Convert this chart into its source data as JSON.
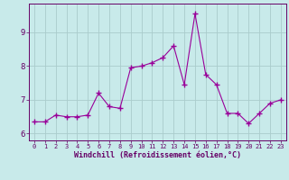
{
  "x": [
    0,
    1,
    2,
    3,
    4,
    5,
    6,
    7,
    8,
    9,
    10,
    11,
    12,
    13,
    14,
    15,
    16,
    17,
    18,
    19,
    20,
    21,
    22,
    23
  ],
  "y": [
    6.35,
    6.35,
    6.55,
    6.5,
    6.5,
    6.55,
    7.2,
    6.8,
    6.75,
    7.95,
    8.0,
    8.1,
    8.25,
    8.6,
    7.45,
    9.55,
    7.75,
    7.45,
    6.6,
    6.6,
    6.3,
    6.6,
    6.9,
    7.0
  ],
  "line_color": "#990099",
  "marker": "+",
  "bg_color": "#c8eaea",
  "grid_color": "#aacccc",
  "axis_color": "#660066",
  "xlabel": "Windchill (Refroidissement éolien,°C)",
  "ylim_min": 5.8,
  "ylim_max": 9.85,
  "xlim_min": -0.5,
  "xlim_max": 23.5,
  "yticks": [
    6,
    7,
    8,
    9
  ],
  "xticks": [
    0,
    1,
    2,
    3,
    4,
    5,
    6,
    7,
    8,
    9,
    10,
    11,
    12,
    13,
    14,
    15,
    16,
    17,
    18,
    19,
    20,
    21,
    22,
    23
  ],
  "font_color": "#660066",
  "xlabel_fontsize": 6.0,
  "xtick_fontsize": 5.0,
  "ytick_fontsize": 6.5
}
